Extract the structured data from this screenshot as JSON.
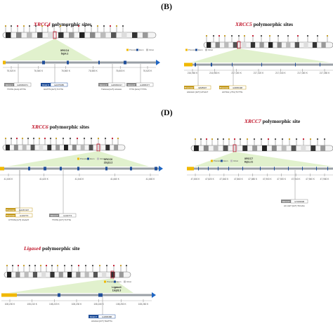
{
  "panels": [
    {
      "letter": "",
      "gene": "XRCC4",
      "suffix": " polymorphic sites",
      "band_title": "XRCC4",
      "band_sub": "5q14.2",
      "ticks": [
        "76,520 K",
        "76,540 K",
        "76,560 K",
        "76,580 K",
        "76,600 K",
        "76,620 K"
      ],
      "snps": [
        {
          "type": "Intron 1",
          "id": "rs28360071",
          "seq": "TTATG [G/A] ATTTA",
          "color": "#8a8a8a"
        },
        {
          "type": "Exon 3",
          "id": "rs2075685",
          "seq": "GGTTS [G/T] TCTTA",
          "color": "#1f4e99"
        },
        {
          "type": "Intron 4",
          "id": "rs28360317",
          "seq": "TGGGA [G/T] ACAAA",
          "color": "#8a8a8a"
        },
        {
          "type": "Intron 6",
          "id": "rs1805377",
          "seq": "TTTA [G/A] TTTTA",
          "color": "#8a8a8a"
        }
      ]
    },
    {
      "letter": "(B)",
      "gene": "XRCC5",
      "suffix": " polymorphic sites",
      "band_title": "",
      "band_sub": "",
      "ticks": [
        "216,960 K",
        "216,980 K",
        "217,000 K",
        "217,020 K",
        "217,040 K",
        "217,060 K",
        "217,080 K"
      ],
      "snps": [
        {
          "type": "Promoter",
          "id": "rs828907",
          "seq": "AGGGC [G/T] GTGGT",
          "color": "#c49a1e"
        },
        {
          "type": "Promoter",
          "id": "rs3835498",
          "seq": "ACTAG [-/TG] TCTTG",
          "color": "#c49a1e"
        }
      ]
    },
    {
      "letter": "",
      "gene": "XRCC6",
      "suffix": " polymorphic sites",
      "band_title": "XRCC6",
      "band_sub": "22q13.2",
      "ticks": [
        "41,600 K",
        "41,620 K",
        "41,640 K",
        "41,660 K",
        "41,680 K"
      ],
      "snps": [
        {
          "type": "Promoter",
          "id": "rs2267437",
          "seq": "TTATG [C/G] CTTTA",
          "color": "#c49a1e"
        },
        {
          "type": "Promoter",
          "id": "rs132770",
          "seq": "CTTATA [C/T] CGAAT",
          "color": "#c49a1e"
        },
        {
          "type": "Intron 3",
          "id": "rs132774",
          "seq": "TTATG [C/T] TCTTA",
          "color": "#8a8a8a"
        }
      ]
    },
    {
      "letter": "(D)",
      "gene": "XRCC7",
      "suffix": " polymorphic site",
      "band_title": "XRCC7",
      "band_sub": "8q11.21",
      "ticks": [
        "47,800 K",
        "47,820 K",
        "47,840 K",
        "47,860 K",
        "47,880 K",
        "47,900 K",
        "47,920 K",
        "47,940 K",
        "47,960 K",
        "47,980 K"
      ],
      "snps": [
        {
          "type": "Intron 8",
          "id": "rs7003908",
          "seq": "AC AGT [G/T] TCCAG",
          "color": "#8a8a8a"
        }
      ]
    },
    {
      "letter": "",
      "gene": "Ligase4",
      "suffix": " polymorphic site",
      "band_title": "Ligase4",
      "band_sub": "13q33.3",
      "ticks": [
        "108,200 K",
        "108,210 K",
        "108,220 K",
        "108,230 K",
        "108,240 K",
        "108,250 K",
        "108,260 K"
      ],
      "snps": [
        {
          "type": "Exon 2",
          "id": "rs1805388",
          "seq": "ACAGA [C/T] TAATTG",
          "color": "#1f4e99"
        }
      ]
    }
  ],
  "legend": [
    "Promoter",
    "Exon",
    "Intron"
  ],
  "colors": {
    "promoter": "#f0b800",
    "exon": "#1f4e99",
    "intron": "#bdbdbd",
    "band_fill": "#dcefc4",
    "title_gene": "#c0152a"
  }
}
